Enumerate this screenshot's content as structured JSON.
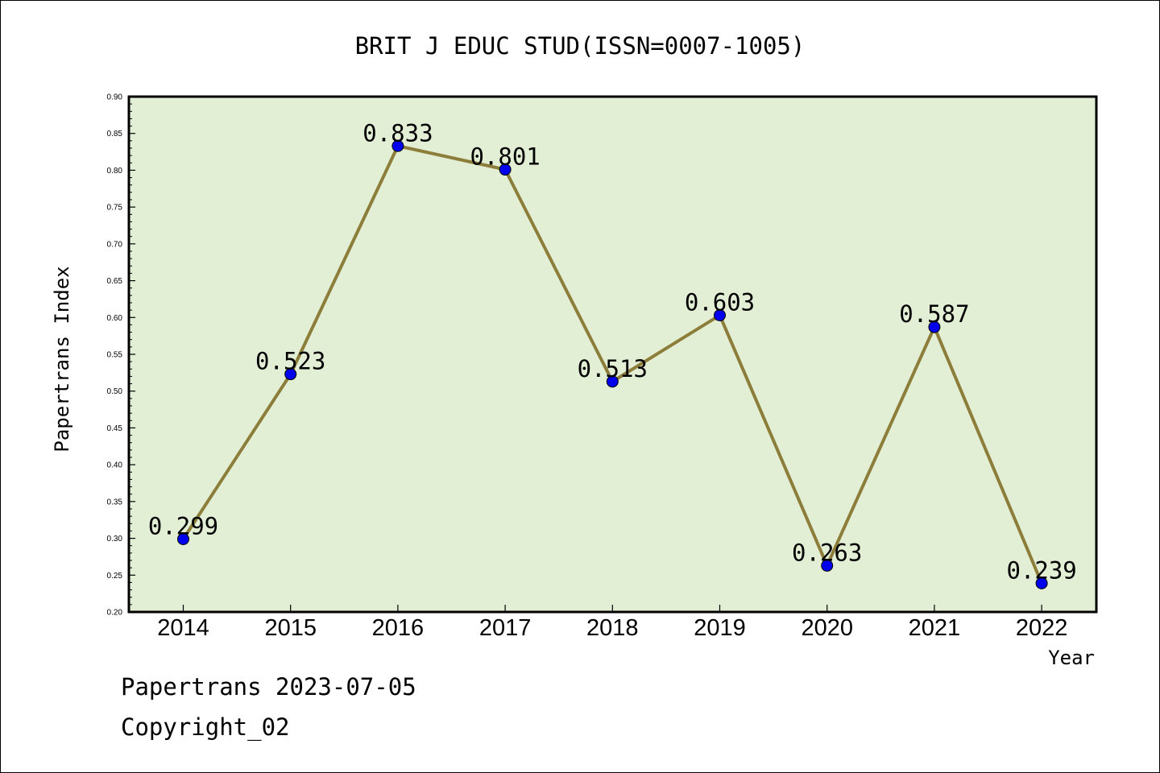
{
  "chart_data": {
    "type": "line",
    "title": "BRIT J EDUC STUD(ISSN=0007-1005)",
    "xlabel": "Year",
    "ylabel": "Papertrans Index",
    "categories": [
      "2014",
      "2015",
      "2016",
      "2017",
      "2018",
      "2019",
      "2020",
      "2021",
      "2022"
    ],
    "values": [
      0.299,
      0.523,
      0.833,
      0.801,
      0.513,
      0.603,
      0.263,
      0.587,
      0.239
    ],
    "data_labels": [
      "0.299",
      "0.523",
      "0.833",
      "0.801",
      "0.513",
      "0.603",
      "0.263",
      "0.587",
      "0.239"
    ],
    "ylim": [
      0.2,
      0.9
    ],
    "yticks": [
      "0.20",
      "0.25",
      "0.30",
      "0.35",
      "0.40",
      "0.45",
      "0.50",
      "0.55",
      "0.60",
      "0.65",
      "0.70",
      "0.75",
      "0.80",
      "0.85",
      "0.90"
    ],
    "colors": {
      "plot_bg": "#e2efd5",
      "line": "#8c7e3a",
      "marker": "#0000ee",
      "axis": "#000000"
    },
    "grid": false,
    "legend": "none"
  },
  "footer": {
    "line1": "Papertrans 2023-07-05",
    "line2": "Copyright_02"
  }
}
